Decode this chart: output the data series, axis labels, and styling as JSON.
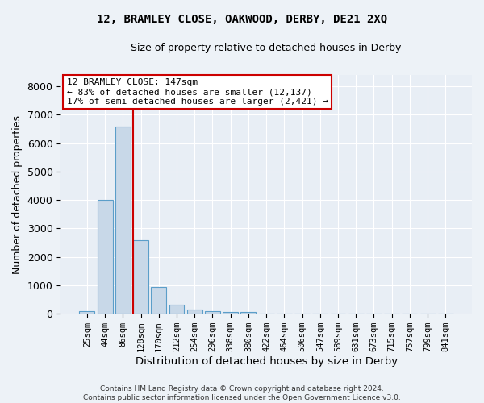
{
  "title1": "12, BRAMLEY CLOSE, OAKWOOD, DERBY, DE21 2XQ",
  "title2": "Size of property relative to detached houses in Derby",
  "xlabel": "Distribution of detached houses by size in Derby",
  "ylabel": "Number of detached properties",
  "bin_labels": [
    "25sqm",
    "44sqm",
    "86sqm",
    "128sqm",
    "170sqm",
    "212sqm",
    "254sqm",
    "296sqm",
    "338sqm",
    "380sqm",
    "422sqm",
    "464sqm",
    "506sqm",
    "547sqm",
    "589sqm",
    "631sqm",
    "673sqm",
    "715sqm",
    "757sqm",
    "799sqm",
    "841sqm"
  ],
  "bar_heights": [
    80,
    4000,
    6600,
    2600,
    950,
    320,
    140,
    100,
    70,
    50,
    0,
    0,
    0,
    0,
    0,
    0,
    0,
    0,
    0,
    0,
    0
  ],
  "bar_color": "#c8d8e8",
  "bar_edge_color": "#5b9ec9",
  "vline_pos": 2.57,
  "vline_color": "#cc0000",
  "annotation_line1": "12 BRAMLEY CLOSE: 147sqm",
  "annotation_line2": "← 83% of detached houses are smaller (12,137)",
  "annotation_line3": "17% of semi-detached houses are larger (2,421) →",
  "annotation_box_edgecolor": "#cc0000",
  "footer": "Contains HM Land Registry data © Crown copyright and database right 2024.\nContains public sector information licensed under the Open Government Licence v3.0.",
  "ylim": [
    0,
    8400
  ],
  "yticks": [
    0,
    1000,
    2000,
    3000,
    4000,
    5000,
    6000,
    7000,
    8000
  ],
  "bg_color": "#e8eef5",
  "fig_bg": "#edf2f7",
  "grid_color": "#ffffff"
}
